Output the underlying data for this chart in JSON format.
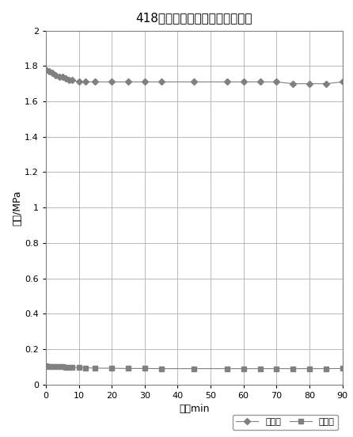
{
  "title": "418井井口压降曲线（绝对压力）",
  "xlabel": "时间min",
  "ylabel": "液压/MPa",
  "xlim": [
    0,
    90
  ],
  "ylim": [
    0,
    2
  ],
  "xticks": [
    0,
    10,
    20,
    30,
    40,
    50,
    60,
    70,
    80,
    90
  ],
  "yticks": [
    0,
    0.2,
    0.4,
    0.6,
    0.8,
    1.0,
    1.2,
    1.4,
    1.6,
    1.8,
    2.0
  ],
  "series1_label": "调剖前",
  "series2_label": "调剖后",
  "series1_x": [
    0,
    1,
    2,
    3,
    4,
    5,
    6,
    7,
    8,
    10,
    12,
    15,
    20,
    25,
    30,
    35,
    45,
    55,
    60,
    65,
    70,
    75,
    80,
    85,
    90
  ],
  "series1_y": [
    1.78,
    1.77,
    1.76,
    1.75,
    1.74,
    1.74,
    1.73,
    1.72,
    1.72,
    1.71,
    1.71,
    1.71,
    1.71,
    1.71,
    1.71,
    1.71,
    1.71,
    1.71,
    1.71,
    1.71,
    1.71,
    1.7,
    1.7,
    1.7,
    1.71
  ],
  "series2_x": [
    0,
    1,
    2,
    3,
    4,
    5,
    6,
    7,
    8,
    10,
    12,
    15,
    20,
    25,
    30,
    35,
    45,
    55,
    60,
    65,
    70,
    75,
    80,
    85,
    90
  ],
  "series2_y": [
    0.105,
    0.103,
    0.102,
    0.101,
    0.1,
    0.1,
    0.099,
    0.098,
    0.097,
    0.096,
    0.095,
    0.093,
    0.092,
    0.091,
    0.091,
    0.09,
    0.09,
    0.09,
    0.09,
    0.09,
    0.09,
    0.09,
    0.09,
    0.09,
    0.091
  ],
  "line_color": "#808080",
  "marker1": "D",
  "marker2": "s",
  "marker_size1": 4,
  "marker_size2": 5,
  "grid_color": "#b0b0b0",
  "bg_color": "#ffffff",
  "title_fontsize": 11,
  "label_fontsize": 9,
  "tick_fontsize": 8,
  "legend_fontsize": 8
}
